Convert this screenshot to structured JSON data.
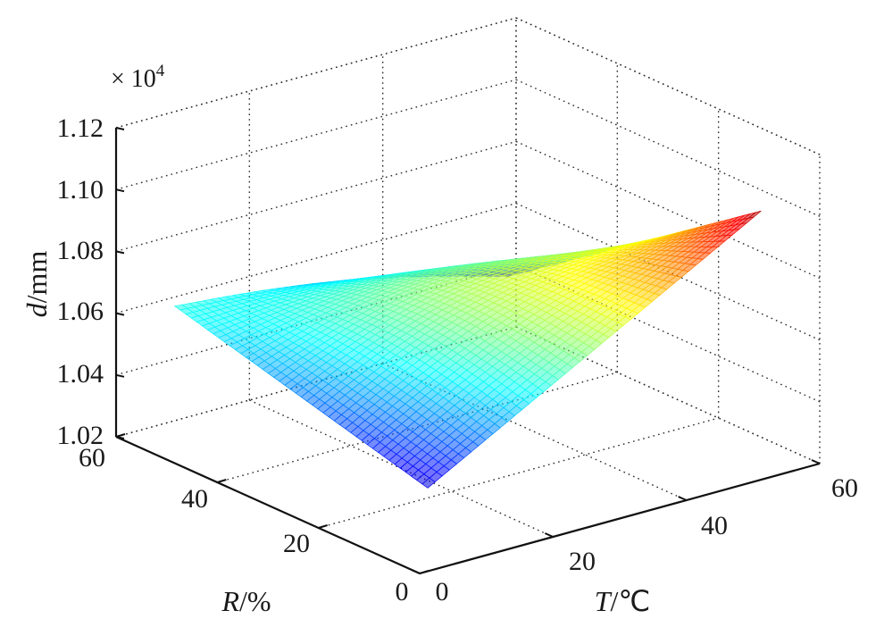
{
  "chart_data": {
    "type": "surface3d",
    "zlabel_var": "d",
    "zlabel_unit": "/mm",
    "xlabel_var": "T",
    "xlabel_unit": "/℃",
    "ylabel_var": "R",
    "ylabel_unit": "/%",
    "z_exponent_prefix": "× 10",
    "z_exponent_power": "4",
    "x_ticks": [
      "0",
      "20",
      "40",
      "60"
    ],
    "y_ticks": [
      "0",
      "20",
      "40",
      "60"
    ],
    "z_ticks": [
      "1.02",
      "1.04",
      "1.06",
      "1.08",
      "1.10",
      "1.12"
    ],
    "xlim": [
      0,
      60
    ],
    "ylim": [
      0,
      60
    ],
    "zlim": [
      1.02,
      1.12
    ],
    "grid": true,
    "surface": {
      "x_range": [
        5,
        55
      ],
      "y_range": [
        5,
        55
      ],
      "corners": [
        {
          "T": 5,
          "R": 55,
          "z": 1.063
        },
        {
          "T": 55,
          "R": 55,
          "z": 1.043
        },
        {
          "T": 55,
          "R": 5,
          "z": 1.101
        },
        {
          "T": 5,
          "R": 5,
          "z": 1.041
        }
      ],
      "color_range": [
        1.035,
        1.105
      ],
      "colormap": "jet"
    }
  }
}
